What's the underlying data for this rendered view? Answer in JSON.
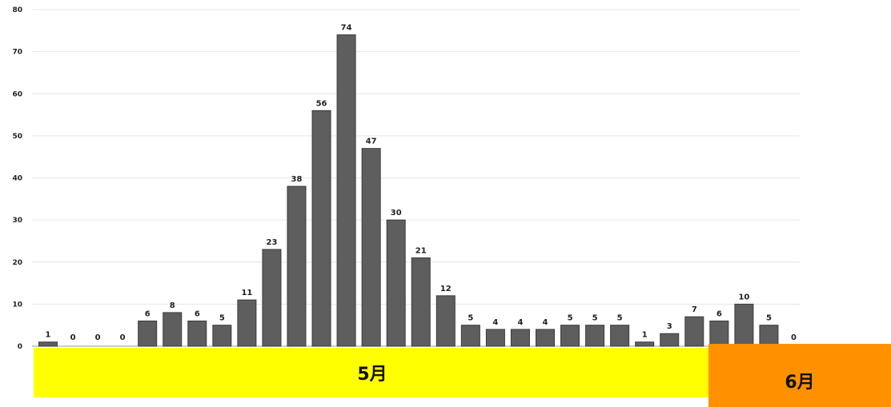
{
  "chart_data": {
    "type": "bar",
    "values": [
      1,
      0,
      0,
      0,
      6,
      8,
      6,
      5,
      11,
      23,
      38,
      56,
      74,
      47,
      30,
      21,
      12,
      5,
      4,
      4,
      4,
      5,
      5,
      5,
      1,
      3,
      7,
      6,
      10,
      5,
      0
    ],
    "y_ticks": [
      "0",
      "10",
      "20",
      "30",
      "40",
      "50",
      "60",
      "70",
      "80"
    ],
    "ylim": [
      0,
      80
    ],
    "grid": true,
    "legend": "none",
    "colors": {
      "bar": "#5e5e5e",
      "bar_edge": "#3a3a3a",
      "grid": "#e6e6e6"
    }
  },
  "months": {
    "may": {
      "label": "5月",
      "color": "#ffff00"
    },
    "june": {
      "label": "6月",
      "color": "#ff9100"
    }
  }
}
